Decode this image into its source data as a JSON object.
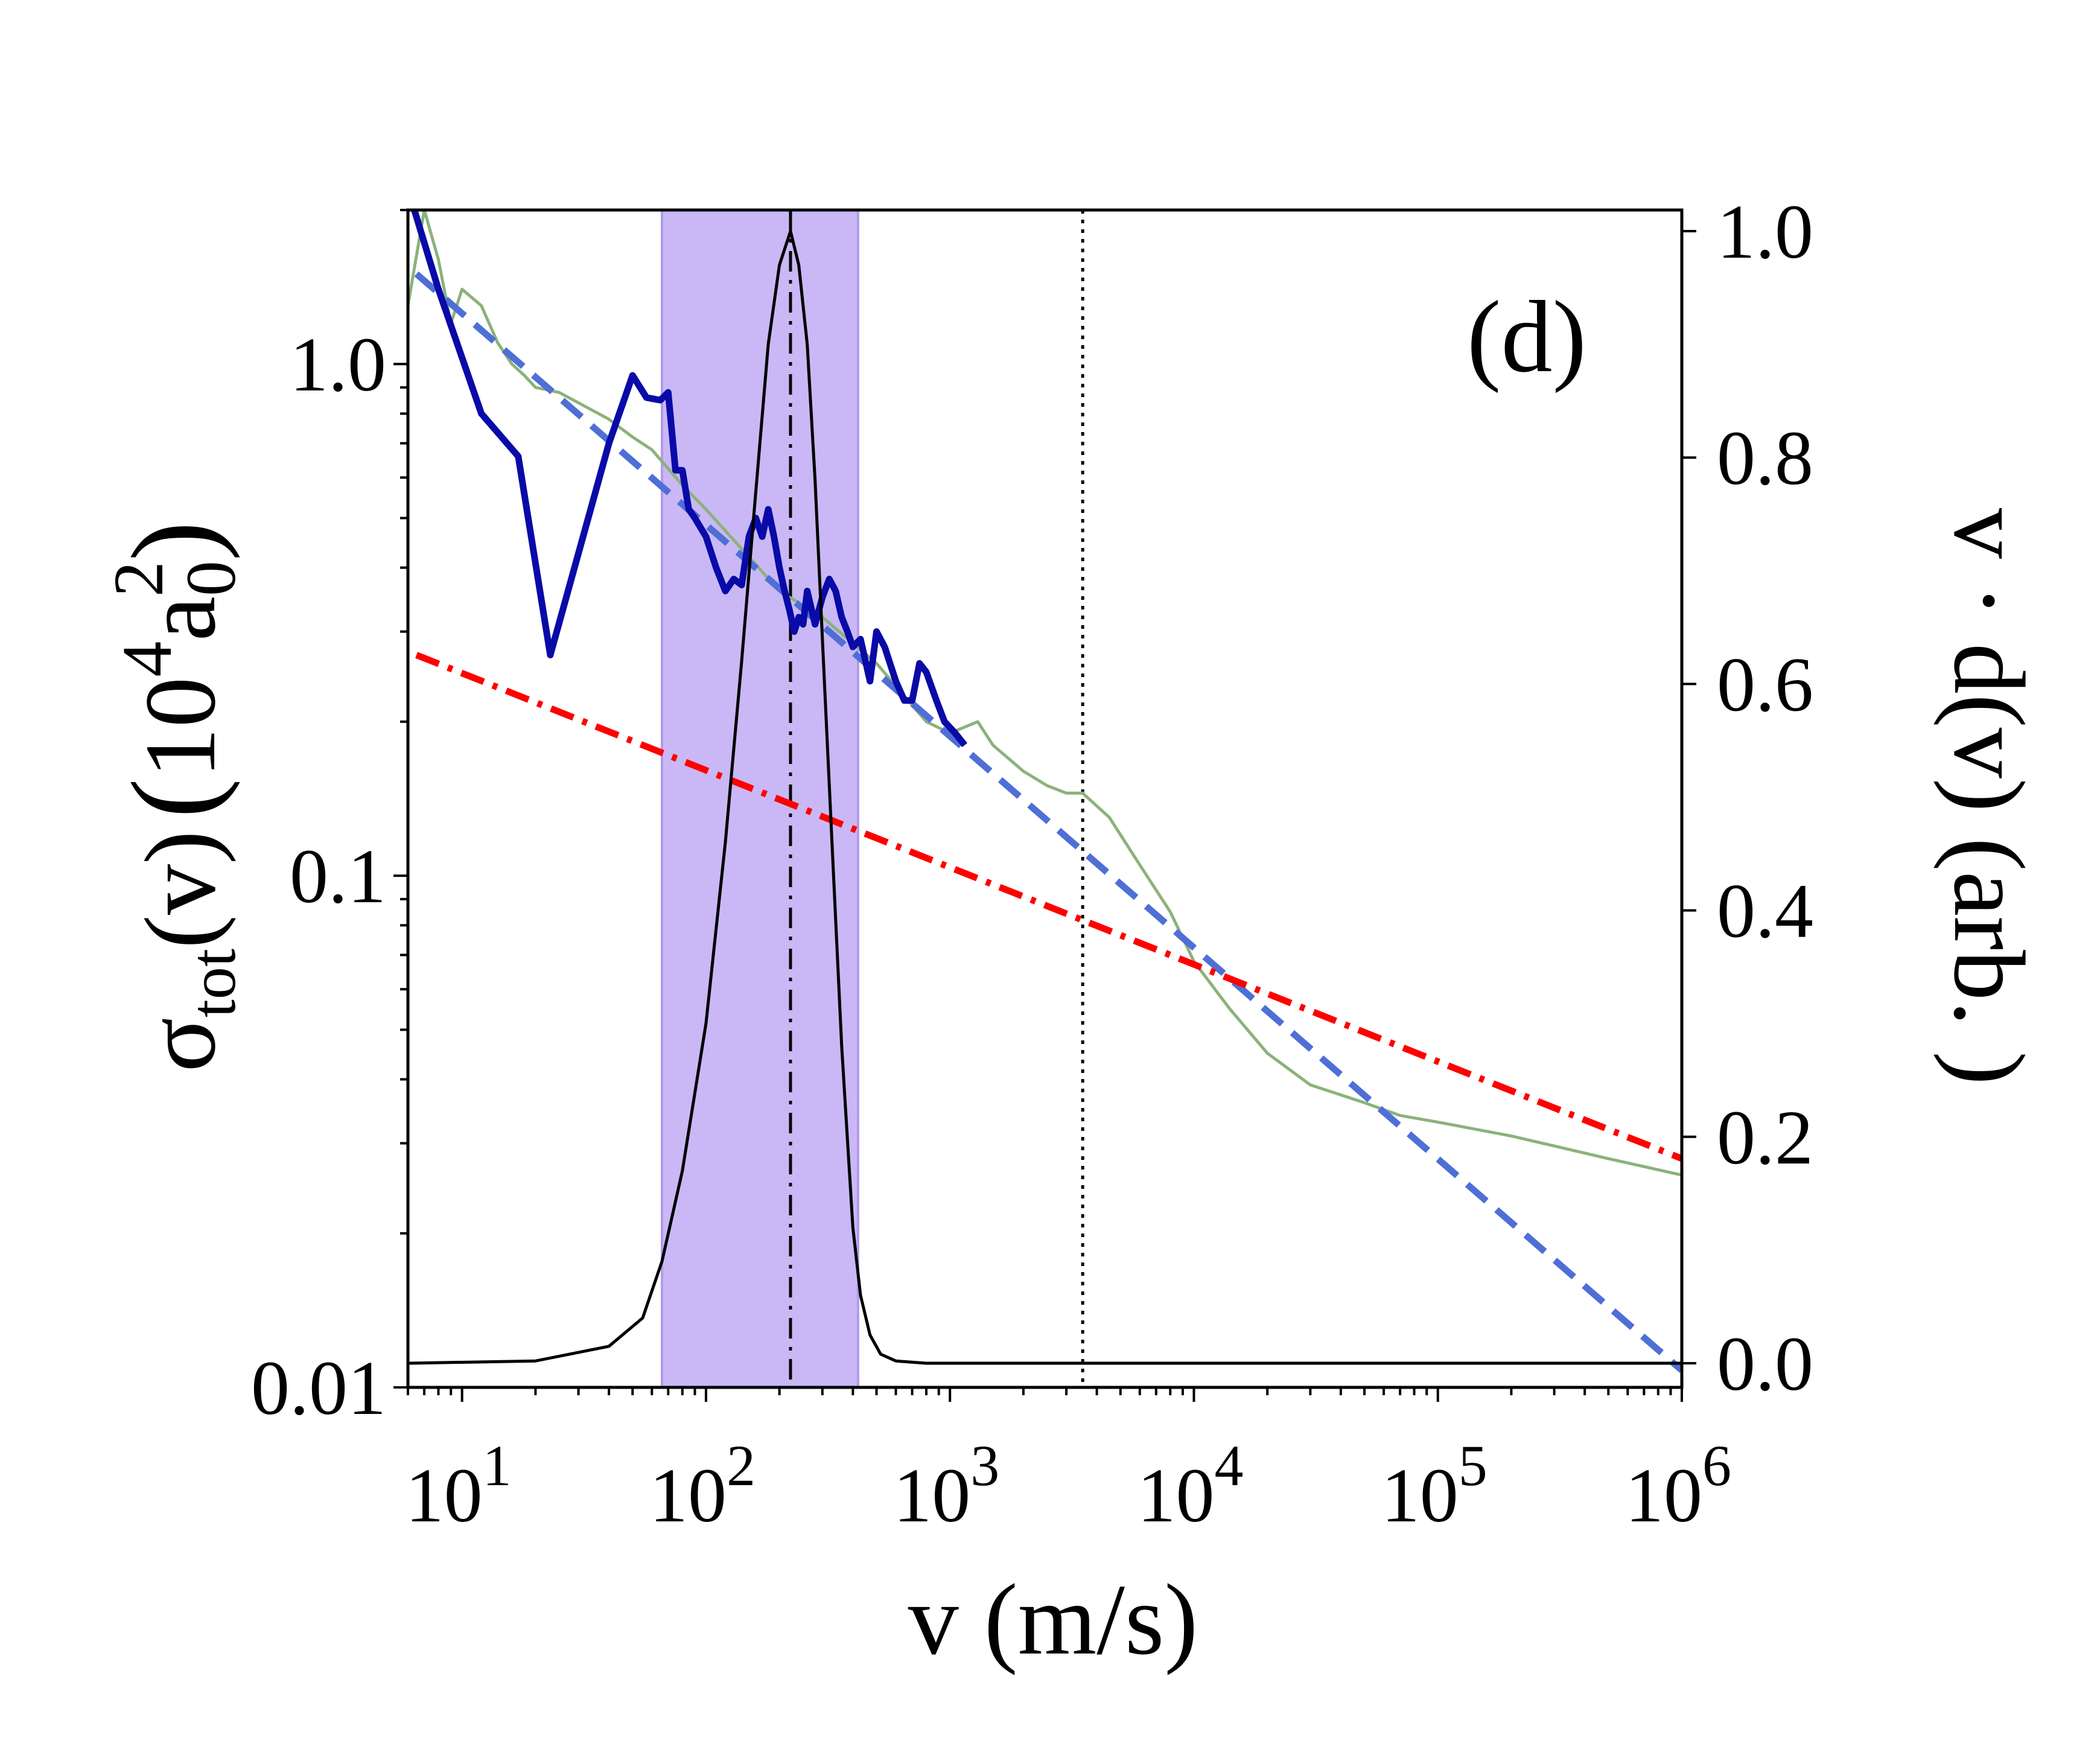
{
  "chart_data": {
    "type": "line",
    "panel_label": "(d)",
    "xlabel": "v (m/s)",
    "x_scale": "log",
    "xlim": [
      6,
      1000000
    ],
    "x_ticks": [
      {
        "value": 10,
        "base": "10",
        "exp": "1"
      },
      {
        "value": 100,
        "base": "10",
        "exp": "2"
      },
      {
        "value": 1000,
        "base": "10",
        "exp": "3"
      },
      {
        "value": 10000,
        "base": "10",
        "exp": "4"
      },
      {
        "value": 100000,
        "base": "10",
        "exp": "5"
      },
      {
        "value": 1000000,
        "base": "10",
        "exp": "6"
      }
    ],
    "ylabel_left": {
      "sigma": "σ",
      "sub": "tot",
      "rest": "(v)",
      "unit_base": "10",
      "unit_exp": "4",
      "unit_var": "a",
      "unit_var_sub": "0",
      "unit_var_exp": "2"
    },
    "y_left_scale": "log",
    "y_left_lim": [
      0.01,
      2.0
    ],
    "y_left_ticks": [
      {
        "value": 0.01,
        "label": "0.01"
      },
      {
        "value": 0.1,
        "label": "0.1"
      },
      {
        "value": 1.0,
        "label": "1.0"
      }
    ],
    "ylabel_right": "v · d(v) (arb. )",
    "y_right_lim": [
      0.0,
      1.0
    ],
    "y_right_ticks": [
      {
        "value": 0.0,
        "label": "0.0"
      },
      {
        "value": 0.2,
        "label": "0.2"
      },
      {
        "value": 0.4,
        "label": "0.4"
      },
      {
        "value": 0.6,
        "label": "0.6"
      },
      {
        "value": 0.8,
        "label": "0.8"
      },
      {
        "value": 1.0,
        "label": "1.0"
      }
    ],
    "shaded_band": {
      "x_range": [
        66,
        420
      ],
      "color": "#c9b8f5"
    },
    "vlines": [
      {
        "x": 222,
        "style": "dashdot",
        "color": "#000000"
      },
      {
        "x": 3500,
        "style": "dotted",
        "color": "#000000"
      }
    ],
    "series": [
      {
        "name": "power-law fit (blue dashed)",
        "axis": "left",
        "style": "dashed",
        "color": "#4f6fd6",
        "x": [
          6.5,
          1000000
        ],
        "y": [
          1.5,
          0.0108
        ]
      },
      {
        "name": "reference (red dash-dot)",
        "axis": "left",
        "style": "dashdot",
        "color": "#ff0000",
        "x": [
          6.5,
          1000000
        ],
        "y": [
          0.27,
          0.028
        ]
      },
      {
        "name": "computed cross section (thick blue)",
        "axis": "left",
        "style": "solid",
        "color": "#0a0aa8",
        "x": [
          6,
          8,
          12,
          17,
          23,
          40,
          50,
          57,
          65,
          70,
          75,
          80,
          85,
          90,
          100,
          110,
          120,
          130,
          140,
          150,
          160,
          170,
          180,
          190,
          200,
          210,
          220,
          230,
          240,
          250,
          260,
          280,
          300,
          320,
          340,
          360,
          380,
          400,
          430,
          470,
          500,
          540,
          600,
          650,
          700,
          750,
          800,
          880,
          950,
          1050,
          1150
        ],
        "y": [
          2.2,
          1.4,
          0.8,
          0.66,
          0.27,
          0.7,
          0.95,
          0.86,
          0.85,
          0.88,
          0.62,
          0.62,
          0.52,
          0.5,
          0.46,
          0.4,
          0.36,
          0.38,
          0.37,
          0.46,
          0.5,
          0.46,
          0.52,
          0.46,
          0.4,
          0.36,
          0.33,
          0.3,
          0.32,
          0.31,
          0.36,
          0.31,
          0.35,
          0.38,
          0.36,
          0.32,
          0.3,
          0.28,
          0.29,
          0.24,
          0.3,
          0.28,
          0.24,
          0.22,
          0.22,
          0.26,
          0.25,
          0.22,
          0.2,
          0.19,
          0.18
        ]
      },
      {
        "name": "reference data (green)",
        "axis": "left",
        "style": "solid",
        "color": "#8cb27a",
        "x": [
          6,
          7,
          8,
          9,
          10,
          12,
          14,
          16,
          18,
          20,
          25,
          30,
          40,
          50,
          60,
          80,
          100,
          150,
          200,
          300,
          500,
          800,
          1000,
          1300,
          1500,
          2000,
          2500,
          3000,
          3500,
          4500,
          6000,
          8000,
          10000,
          14000,
          20000,
          30000,
          50000,
          70000,
          100000,
          200000,
          500000,
          1000000
        ],
        "y": [
          1.3,
          2.0,
          1.6,
          1.2,
          1.4,
          1.3,
          1.1,
          1.0,
          0.95,
          0.9,
          0.88,
          0.84,
          0.78,
          0.72,
          0.68,
          0.58,
          0.52,
          0.42,
          0.36,
          0.32,
          0.26,
          0.2,
          0.19,
          0.2,
          0.18,
          0.16,
          0.15,
          0.145,
          0.145,
          0.13,
          0.105,
          0.085,
          0.068,
          0.055,
          0.045,
          0.039,
          0.036,
          0.034,
          0.033,
          0.031,
          0.028,
          0.026
        ]
      },
      {
        "name": "velocity distribution v·d(v)",
        "axis": "right",
        "style": "solid",
        "color": "#000000",
        "x": [
          6,
          20,
          40,
          55,
          66,
          80,
          100,
          120,
          140,
          160,
          180,
          200,
          222,
          240,
          260,
          280,
          300,
          330,
          360,
          400,
          430,
          470,
          520,
          600,
          800,
          1000,
          10000,
          1000000
        ],
        "y": [
          0.0,
          0.002,
          0.015,
          0.04,
          0.09,
          0.17,
          0.3,
          0.46,
          0.62,
          0.77,
          0.9,
          0.97,
          1.0,
          0.97,
          0.9,
          0.78,
          0.64,
          0.45,
          0.28,
          0.12,
          0.06,
          0.025,
          0.008,
          0.002,
          0.0,
          0.0,
          0.0,
          0.0
        ]
      }
    ]
  }
}
